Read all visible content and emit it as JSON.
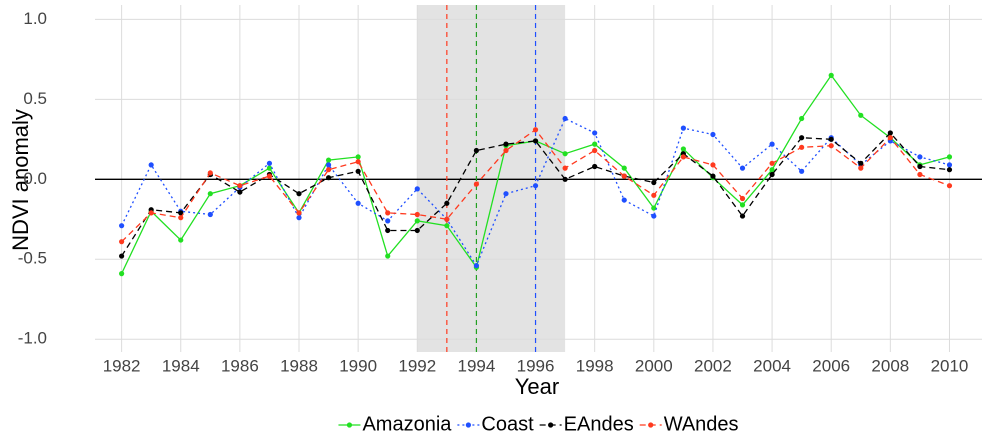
{
  "chart_data": {
    "type": "line",
    "xlabel": "Year",
    "ylabel": "NDVI anomaly",
    "x": [
      1982,
      1983,
      1984,
      1985,
      1986,
      1987,
      1988,
      1989,
      1990,
      1991,
      1992,
      1993,
      1994,
      1995,
      1996,
      1997,
      1998,
      1999,
      2000,
      2001,
      2002,
      2003,
      2004,
      2005,
      2006,
      2007,
      2008,
      2009,
      2010
    ],
    "series": [
      {
        "name": "Amazonia",
        "color": "#22e022",
        "dash": "solid",
        "values": [
          -0.59,
          -0.2,
          -0.38,
          -0.09,
          -0.04,
          0.07,
          -0.21,
          0.12,
          0.14,
          -0.48,
          -0.26,
          -0.29,
          -0.55,
          0.21,
          0.24,
          0.16,
          0.22,
          0.07,
          -0.18,
          0.19,
          0.01,
          -0.16,
          0.06,
          0.38,
          0.65,
          0.4,
          0.26,
          0.09,
          0.14
        ]
      },
      {
        "name": "Coast",
        "color": "#1f4fff",
        "dash": "dotted",
        "values": [
          -0.29,
          0.09,
          -0.2,
          -0.22,
          -0.05,
          0.1,
          -0.24,
          0.09,
          -0.15,
          -0.26,
          -0.06,
          -0.25,
          -0.54,
          -0.09,
          -0.04,
          0.38,
          0.29,
          -0.13,
          -0.23,
          0.32,
          0.28,
          0.07,
          0.22,
          0.05,
          0.26,
          0.09,
          0.24,
          0.14,
          0.09
        ]
      },
      {
        "name": "EAndes",
        "color": "#000000",
        "dash": "dashed",
        "values": [
          -0.48,
          -0.19,
          -0.21,
          0.03,
          -0.08,
          0.03,
          -0.09,
          0.01,
          0.05,
          -0.32,
          -0.32,
          -0.15,
          0.18,
          0.22,
          0.24,
          0.0,
          0.08,
          0.02,
          -0.02,
          0.16,
          0.02,
          -0.23,
          0.03,
          0.26,
          0.25,
          0.1,
          0.29,
          0.08,
          0.06
        ]
      },
      {
        "name": "WAndes",
        "color": "#ff3a1f",
        "dash": "dashed",
        "values": [
          -0.39,
          -0.21,
          -0.24,
          0.04,
          -0.04,
          0.02,
          -0.21,
          0.06,
          0.11,
          -0.21,
          -0.22,
          -0.25,
          -0.03,
          0.18,
          0.31,
          0.07,
          0.18,
          0.02,
          -0.1,
          0.14,
          0.09,
          -0.12,
          0.1,
          0.2,
          0.21,
          0.07,
          0.26,
          0.03,
          -0.04
        ]
      }
    ],
    "xlim": [
      1981.1,
      2011.1
    ],
    "ylim": [
      -1.08,
      1.09
    ],
    "xticks": [
      1982,
      1984,
      1986,
      1988,
      1990,
      1992,
      1994,
      1996,
      1998,
      2000,
      2002,
      2004,
      2006,
      2008,
      2010
    ],
    "yticks": [
      {
        "value": -1,
        "label": "-1.0"
      },
      -0.5,
      {
        "value": 0,
        "label": "0.0"
      },
      0.5,
      {
        "value": 1,
        "label": "1.0"
      }
    ],
    "grid": true,
    "shaded_region": {
      "x": [
        1992,
        1997
      ],
      "color": "#e3e3e3"
    },
    "vlines": [
      {
        "x": 1993,
        "color": "#ff3a1f"
      },
      {
        "x": 1994,
        "color": "#22a022"
      },
      {
        "x": 1996,
        "color": "#1f4fff"
      }
    ],
    "hline": {
      "y": 0,
      "color": "#000000"
    },
    "legend": "bottom"
  }
}
